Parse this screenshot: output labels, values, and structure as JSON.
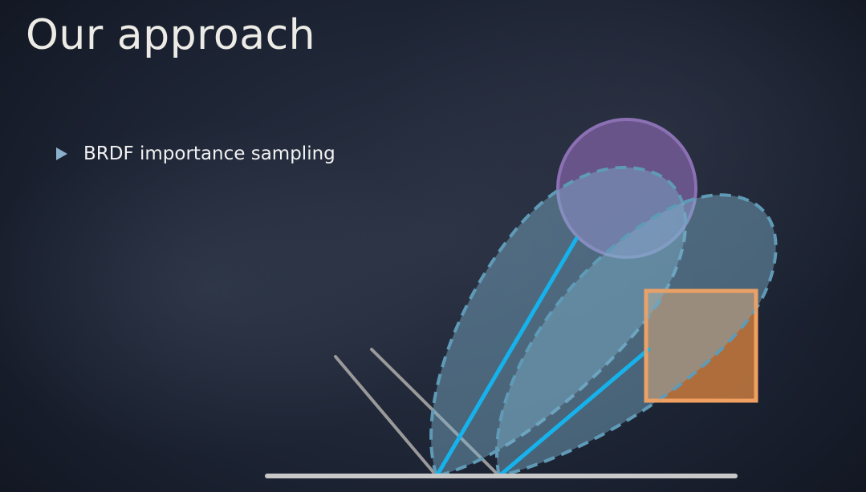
{
  "slide": {
    "title": "Our approach",
    "bullets": [
      {
        "text": "BRDF importance sampling"
      }
    ]
  },
  "colors": {
    "title_text": "#ecebe6",
    "bullet_text": "#f2f2f2",
    "bullet_icon": "#8ab0cc",
    "surface": "#c8c8c8",
    "reflected_rays": "#9a9a9a",
    "brdf_lobe_fill": "#7fb2cc",
    "brdf_lobe_stroke": "#5f9ab6",
    "sample_ray": "#16b2ec",
    "light_sphere_fill": "#7a5f9e",
    "light_sphere_stroke": "#8b70b3",
    "light_box_fill": "#c97a3e",
    "light_box_stroke": "#f0a060"
  }
}
